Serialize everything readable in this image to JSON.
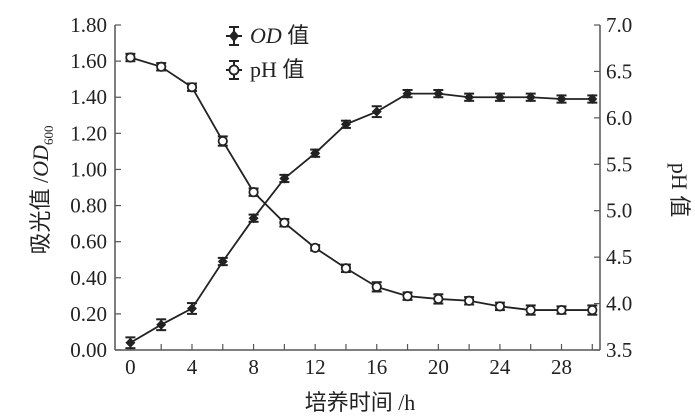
{
  "chart_data": {
    "type": "line",
    "title": "",
    "xlabel": "培养时间 /h",
    "ylabel_left": "吸光值 /OD600",
    "ylabel_left_main": "吸光值 /",
    "ylabel_left_italic": "OD",
    "ylabel_left_sub": "600",
    "ylabel_right": "pH 值",
    "xlim": [
      -1,
      30.5
    ],
    "ylim_left": [
      0,
      1.8
    ],
    "ylim_right": [
      3.5,
      7.0
    ],
    "x_ticks": [
      "0",
      "4",
      "8",
      "12",
      "16",
      "20",
      "24",
      "28"
    ],
    "y_left_ticks": [
      "0.00",
      "0.20",
      "0.40",
      "0.60",
      "0.80",
      "1.00",
      "1.20",
      "1.40",
      "1.60",
      "1.80"
    ],
    "y_right_ticks": [
      "3.5",
      "4.0",
      "4.5",
      "5.0",
      "5.5",
      "6.0",
      "6.5",
      "7.0"
    ],
    "grid": false,
    "legend_placement": "top-center",
    "x": [
      0,
      2,
      4,
      6,
      8,
      10,
      12,
      14,
      16,
      18,
      20,
      22,
      24,
      26,
      28,
      30
    ],
    "series": [
      {
        "name": "OD 值",
        "name_italic": "OD",
        "name_rest": " 值",
        "axis": "left",
        "marker": "filled-diamond",
        "values": [
          0.04,
          0.14,
          0.23,
          0.49,
          0.73,
          0.95,
          1.09,
          1.25,
          1.32,
          1.42,
          1.42,
          1.4,
          1.4,
          1.4,
          1.39,
          1.39
        ],
        "error": [
          0.03,
          0.03,
          0.03,
          0.02,
          0.02,
          0.02,
          0.02,
          0.02,
          0.03,
          0.02,
          0.02,
          0.02,
          0.02,
          0.02,
          0.02,
          0.02
        ]
      },
      {
        "name": "pH 值",
        "axis": "right",
        "marker": "open-circle",
        "values": [
          6.65,
          6.55,
          6.33,
          5.75,
          5.2,
          4.87,
          4.6,
          4.38,
          4.18,
          4.08,
          4.05,
          4.03,
          3.97,
          3.93,
          3.93,
          3.93
        ],
        "error": [
          0.04,
          0.04,
          0.04,
          0.05,
          0.04,
          0.04,
          0.03,
          0.04,
          0.05,
          0.04,
          0.05,
          0.04,
          0.04,
          0.05,
          0.04,
          0.05
        ]
      }
    ],
    "colors": {
      "line": "#222222",
      "axis": "#555555"
    }
  }
}
